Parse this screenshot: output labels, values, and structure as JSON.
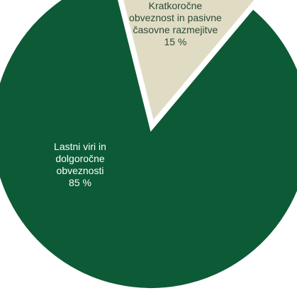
{
  "chart_data": {
    "type": "pie",
    "slices": [
      {
        "lines": [
          "Lastni viri in",
          "dolgoročne",
          "obveznosti"
        ],
        "value_label": "85 %",
        "value": 85,
        "color": "#0d5a37",
        "text_color": "#ffffff",
        "exploded": false
      },
      {
        "lines": [
          "Kratkoročne",
          "obveznost in pasivne",
          "časovne razmejitve"
        ],
        "value_label": "15 %",
        "value": 15,
        "color": "#e0dcc4",
        "text_color": "#2b4a35",
        "exploded": true
      }
    ],
    "title": "",
    "legend": "none"
  }
}
